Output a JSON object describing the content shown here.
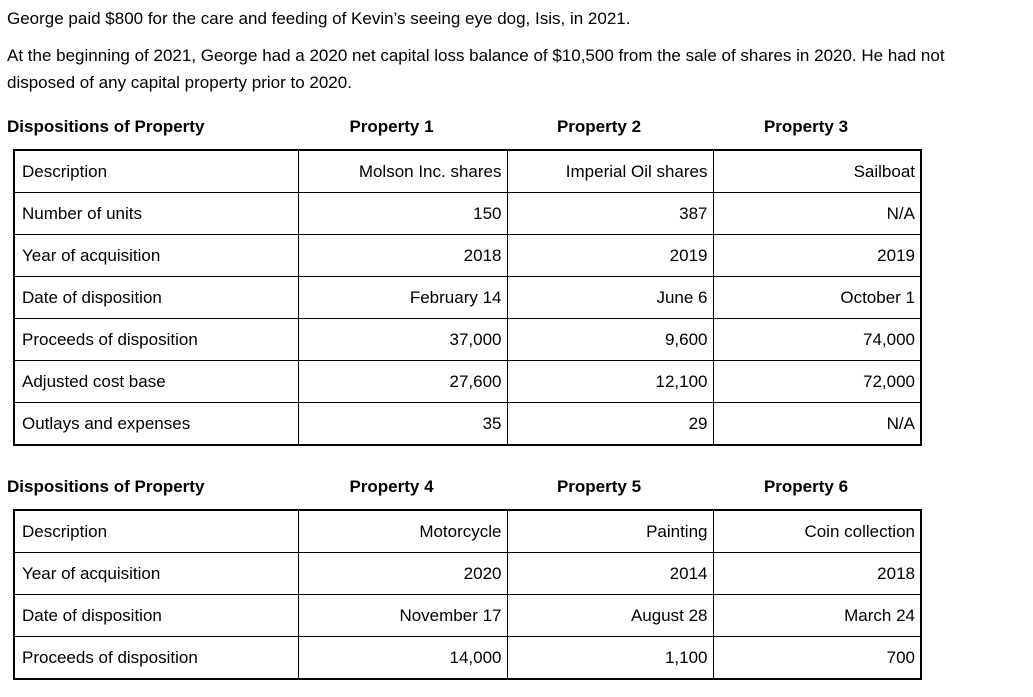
{
  "document": {
    "paragraphs": {
      "p1": "George paid $800 for the care and feeding of Kevin’s seeing eye dog, Isis, in 2021.",
      "p2": "At the beginning of 2021, George had a 2020 net capital loss balance of $10,500 from the sale of shares in 2020. He had not disposed of any capital property prior to 2020."
    }
  },
  "table1": {
    "title": "Dispositions of Property",
    "property_headers": [
      "Property 1",
      "Property 2",
      "Property 3"
    ],
    "rows": [
      {
        "label": "Description",
        "values": [
          "Molson Inc. shares",
          "Imperial Oil shares",
          "Sailboat"
        ]
      },
      {
        "label": "Number of units",
        "values": [
          "150",
          "387",
          "N/A"
        ]
      },
      {
        "label": "Year of acquisition",
        "values": [
          "2018",
          "2019",
          "2019"
        ]
      },
      {
        "label": "Date of disposition",
        "values": [
          "February 14",
          "June 6",
          "October 1"
        ]
      },
      {
        "label": "Proceeds of disposition",
        "values": [
          "37,000",
          "9,600",
          "74,000"
        ]
      },
      {
        "label": "Adjusted cost base",
        "values": [
          "27,600",
          "12,100",
          "72,000"
        ]
      },
      {
        "label": "Outlays and expenses",
        "values": [
          "35",
          "29",
          "N/A"
        ]
      }
    ]
  },
  "table2": {
    "title": "Dispositions of Property",
    "property_headers": [
      "Property 4",
      "Property 5",
      "Property 6"
    ],
    "rows": [
      {
        "label": "Description",
        "values": [
          "Motorcycle",
          "Painting",
          "Coin collection"
        ]
      },
      {
        "label": "Year of acquisition",
        "values": [
          "2020",
          "2014",
          "2018"
        ]
      },
      {
        "label": "Date of disposition",
        "values": [
          "November 17",
          "August 28",
          "March 24"
        ]
      },
      {
        "label": "Proceeds of disposition",
        "values": [
          "14,000",
          "1,100",
          "700"
        ]
      }
    ]
  }
}
